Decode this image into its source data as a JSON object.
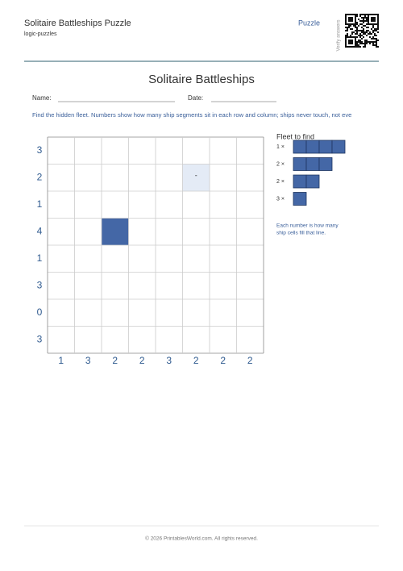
{
  "header": {
    "title": "Solitaire Battleships Puzzle",
    "subtitle": "logic-puzzles",
    "tag": "Puzzle",
    "qr_label": "Verify answers"
  },
  "title": "Solitaire Battleships",
  "fields": {
    "name": "Name:",
    "date": "Date:"
  },
  "instructions": "Find the hidden fleet. Numbers show how many ship segments sit in each row and column; ships never touch, not eve",
  "puzzle": {
    "row_clues": [
      "3",
      "2",
      "1",
      "4",
      "1",
      "3",
      "0",
      "3"
    ],
    "col_clues": [
      "1",
      "3",
      "2",
      "2",
      "3",
      "2",
      "2",
      "2"
    ],
    "givens": [
      {
        "row": 1,
        "col": 5,
        "kind": "water",
        "label": "-"
      },
      {
        "row": 3,
        "col": 2,
        "kind": "ship"
      }
    ]
  },
  "fleet": {
    "title": "Fleet to find",
    "items": [
      {
        "label": "1 ×",
        "size": 4
      },
      {
        "label": "2 ×",
        "size": 3
      },
      {
        "label": "2 ×",
        "size": 2
      },
      {
        "label": "3 ×",
        "size": 1
      }
    ],
    "note": [
      "Each number is how many",
      "ship cells fill that line."
    ]
  },
  "footer": "© 2026 PrintablesWorld.com. All rights reserved."
}
